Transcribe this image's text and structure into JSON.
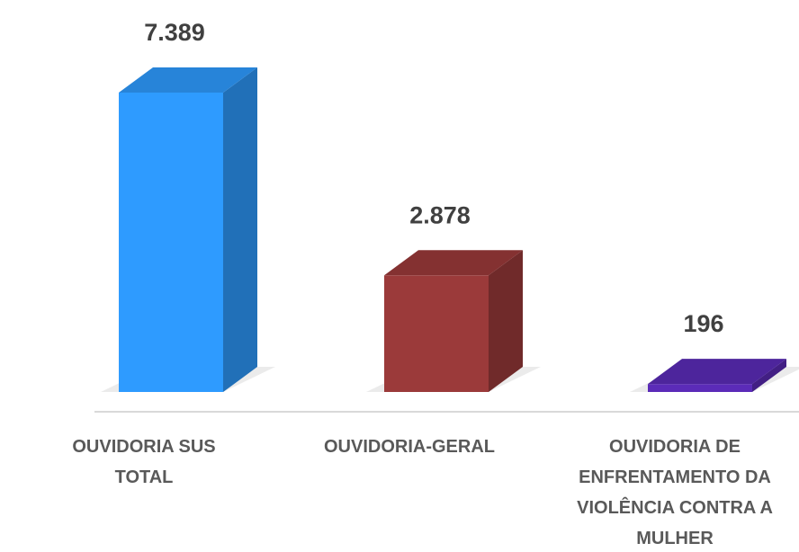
{
  "chart_data": {
    "type": "bar3d",
    "categories": [
      "OUVIDORIA SUS TOTAL",
      "OUVIDORIA-GERAL",
      "OUVIDORIA DE ENFRENTAMENTO DA VIOLÊNCIA CONTRA A MULHER"
    ],
    "values": [
      7389,
      2878,
      196
    ],
    "value_labels": [
      "7.389",
      "2.878",
      "196"
    ],
    "colors": [
      "#2e9bff",
      "#9b3a3a",
      "#5b2bb8"
    ]
  }
}
